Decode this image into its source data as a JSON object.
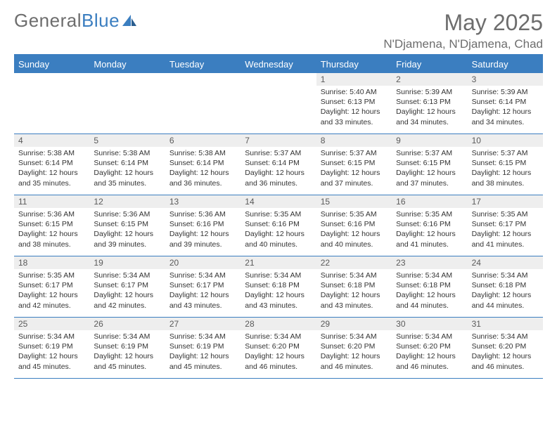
{
  "logo": {
    "text_gray": "General",
    "text_blue": "Blue"
  },
  "title": "May 2025",
  "location": "N'Djamena, N'Djamena, Chad",
  "colors": {
    "accent": "#3b7ec0",
    "header_text": "#ffffff",
    "gray_text": "#6d6d6d",
    "date_bg": "#eeeeee",
    "body_text": "#333333",
    "page_bg": "#ffffff"
  },
  "day_headers": [
    "Sunday",
    "Monday",
    "Tuesday",
    "Wednesday",
    "Thursday",
    "Friday",
    "Saturday"
  ],
  "weeks": [
    [
      {
        "date": "",
        "sunrise": "",
        "sunset": "",
        "daylight": ""
      },
      {
        "date": "",
        "sunrise": "",
        "sunset": "",
        "daylight": ""
      },
      {
        "date": "",
        "sunrise": "",
        "sunset": "",
        "daylight": ""
      },
      {
        "date": "",
        "sunrise": "",
        "sunset": "",
        "daylight": ""
      },
      {
        "date": "1",
        "sunrise": "Sunrise: 5:40 AM",
        "sunset": "Sunset: 6:13 PM",
        "daylight": "Daylight: 12 hours and 33 minutes."
      },
      {
        "date": "2",
        "sunrise": "Sunrise: 5:39 AM",
        "sunset": "Sunset: 6:13 PM",
        "daylight": "Daylight: 12 hours and 34 minutes."
      },
      {
        "date": "3",
        "sunrise": "Sunrise: 5:39 AM",
        "sunset": "Sunset: 6:14 PM",
        "daylight": "Daylight: 12 hours and 34 minutes."
      }
    ],
    [
      {
        "date": "4",
        "sunrise": "Sunrise: 5:38 AM",
        "sunset": "Sunset: 6:14 PM",
        "daylight": "Daylight: 12 hours and 35 minutes."
      },
      {
        "date": "5",
        "sunrise": "Sunrise: 5:38 AM",
        "sunset": "Sunset: 6:14 PM",
        "daylight": "Daylight: 12 hours and 35 minutes."
      },
      {
        "date": "6",
        "sunrise": "Sunrise: 5:38 AM",
        "sunset": "Sunset: 6:14 PM",
        "daylight": "Daylight: 12 hours and 36 minutes."
      },
      {
        "date": "7",
        "sunrise": "Sunrise: 5:37 AM",
        "sunset": "Sunset: 6:14 PM",
        "daylight": "Daylight: 12 hours and 36 minutes."
      },
      {
        "date": "8",
        "sunrise": "Sunrise: 5:37 AM",
        "sunset": "Sunset: 6:15 PM",
        "daylight": "Daylight: 12 hours and 37 minutes."
      },
      {
        "date": "9",
        "sunrise": "Sunrise: 5:37 AM",
        "sunset": "Sunset: 6:15 PM",
        "daylight": "Daylight: 12 hours and 37 minutes."
      },
      {
        "date": "10",
        "sunrise": "Sunrise: 5:37 AM",
        "sunset": "Sunset: 6:15 PM",
        "daylight": "Daylight: 12 hours and 38 minutes."
      }
    ],
    [
      {
        "date": "11",
        "sunrise": "Sunrise: 5:36 AM",
        "sunset": "Sunset: 6:15 PM",
        "daylight": "Daylight: 12 hours and 38 minutes."
      },
      {
        "date": "12",
        "sunrise": "Sunrise: 5:36 AM",
        "sunset": "Sunset: 6:15 PM",
        "daylight": "Daylight: 12 hours and 39 minutes."
      },
      {
        "date": "13",
        "sunrise": "Sunrise: 5:36 AM",
        "sunset": "Sunset: 6:16 PM",
        "daylight": "Daylight: 12 hours and 39 minutes."
      },
      {
        "date": "14",
        "sunrise": "Sunrise: 5:35 AM",
        "sunset": "Sunset: 6:16 PM",
        "daylight": "Daylight: 12 hours and 40 minutes."
      },
      {
        "date": "15",
        "sunrise": "Sunrise: 5:35 AM",
        "sunset": "Sunset: 6:16 PM",
        "daylight": "Daylight: 12 hours and 40 minutes."
      },
      {
        "date": "16",
        "sunrise": "Sunrise: 5:35 AM",
        "sunset": "Sunset: 6:16 PM",
        "daylight": "Daylight: 12 hours and 41 minutes."
      },
      {
        "date": "17",
        "sunrise": "Sunrise: 5:35 AM",
        "sunset": "Sunset: 6:17 PM",
        "daylight": "Daylight: 12 hours and 41 minutes."
      }
    ],
    [
      {
        "date": "18",
        "sunrise": "Sunrise: 5:35 AM",
        "sunset": "Sunset: 6:17 PM",
        "daylight": "Daylight: 12 hours and 42 minutes."
      },
      {
        "date": "19",
        "sunrise": "Sunrise: 5:34 AM",
        "sunset": "Sunset: 6:17 PM",
        "daylight": "Daylight: 12 hours and 42 minutes."
      },
      {
        "date": "20",
        "sunrise": "Sunrise: 5:34 AM",
        "sunset": "Sunset: 6:17 PM",
        "daylight": "Daylight: 12 hours and 43 minutes."
      },
      {
        "date": "21",
        "sunrise": "Sunrise: 5:34 AM",
        "sunset": "Sunset: 6:18 PM",
        "daylight": "Daylight: 12 hours and 43 minutes."
      },
      {
        "date": "22",
        "sunrise": "Sunrise: 5:34 AM",
        "sunset": "Sunset: 6:18 PM",
        "daylight": "Daylight: 12 hours and 43 minutes."
      },
      {
        "date": "23",
        "sunrise": "Sunrise: 5:34 AM",
        "sunset": "Sunset: 6:18 PM",
        "daylight": "Daylight: 12 hours and 44 minutes."
      },
      {
        "date": "24",
        "sunrise": "Sunrise: 5:34 AM",
        "sunset": "Sunset: 6:18 PM",
        "daylight": "Daylight: 12 hours and 44 minutes."
      }
    ],
    [
      {
        "date": "25",
        "sunrise": "Sunrise: 5:34 AM",
        "sunset": "Sunset: 6:19 PM",
        "daylight": "Daylight: 12 hours and 45 minutes."
      },
      {
        "date": "26",
        "sunrise": "Sunrise: 5:34 AM",
        "sunset": "Sunset: 6:19 PM",
        "daylight": "Daylight: 12 hours and 45 minutes."
      },
      {
        "date": "27",
        "sunrise": "Sunrise: 5:34 AM",
        "sunset": "Sunset: 6:19 PM",
        "daylight": "Daylight: 12 hours and 45 minutes."
      },
      {
        "date": "28",
        "sunrise": "Sunrise: 5:34 AM",
        "sunset": "Sunset: 6:20 PM",
        "daylight": "Daylight: 12 hours and 46 minutes."
      },
      {
        "date": "29",
        "sunrise": "Sunrise: 5:34 AM",
        "sunset": "Sunset: 6:20 PM",
        "daylight": "Daylight: 12 hours and 46 minutes."
      },
      {
        "date": "30",
        "sunrise": "Sunrise: 5:34 AM",
        "sunset": "Sunset: 6:20 PM",
        "daylight": "Daylight: 12 hours and 46 minutes."
      },
      {
        "date": "31",
        "sunrise": "Sunrise: 5:34 AM",
        "sunset": "Sunset: 6:20 PM",
        "daylight": "Daylight: 12 hours and 46 minutes."
      }
    ]
  ]
}
